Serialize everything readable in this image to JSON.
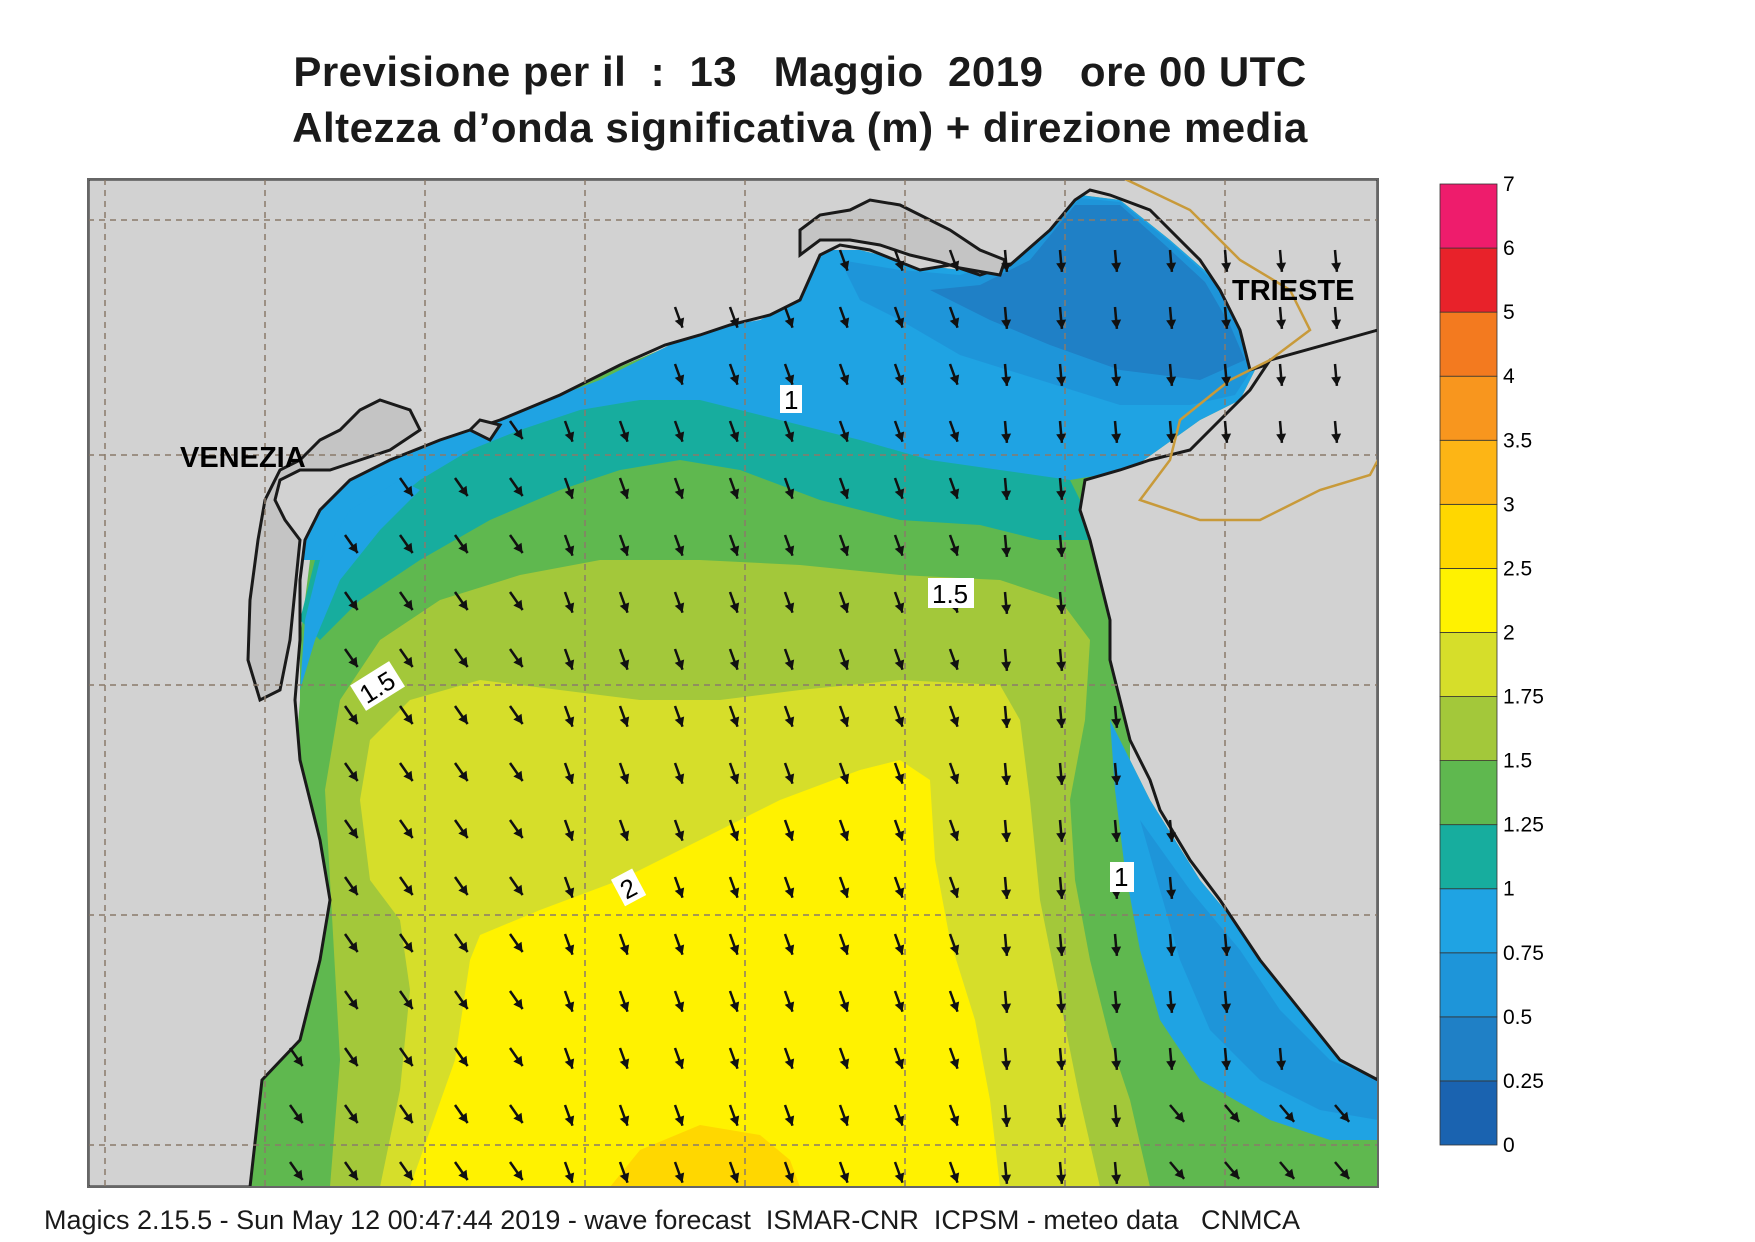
{
  "title": {
    "line1": "Previsione per il  :  13   Maggio  2019   ore 00 UTC",
    "line2": "Altezza d’onda significativa (m) + direzione media"
  },
  "cities": {
    "venezia": "VENEZIA",
    "trieste": "TRIESTE"
  },
  "contour_labels": {
    "c1_north": "1",
    "c15_east": "1.5",
    "c15_west": "1.5",
    "c2": "2",
    "c1_east": "1"
  },
  "colorbar": {
    "levels": [
      "0",
      "0.25",
      "0.5",
      "0.75",
      "1",
      "1.25",
      "1.5",
      "1.75",
      "2",
      "2.5",
      "3",
      "3.5",
      "4",
      "5",
      "6",
      "7"
    ],
    "colors": [
      "#1a63b0",
      "#1f80c6",
      "#1e95d9",
      "#1fa3e3",
      "#17ad9e",
      "#5fb84f",
      "#a3c83a",
      "#d6de2a",
      "#fff200",
      "#ffd700",
      "#fdb515",
      "#f8961e",
      "#f37a1f",
      "#e8222a",
      "#ee1c6c"
    ]
  },
  "footer": "Magics 2.15.5 - Sun May 12 00:47:44 2019 - wave forecast  ISMAR-CNR  ICPSM - meteo data   CNMCA"
}
